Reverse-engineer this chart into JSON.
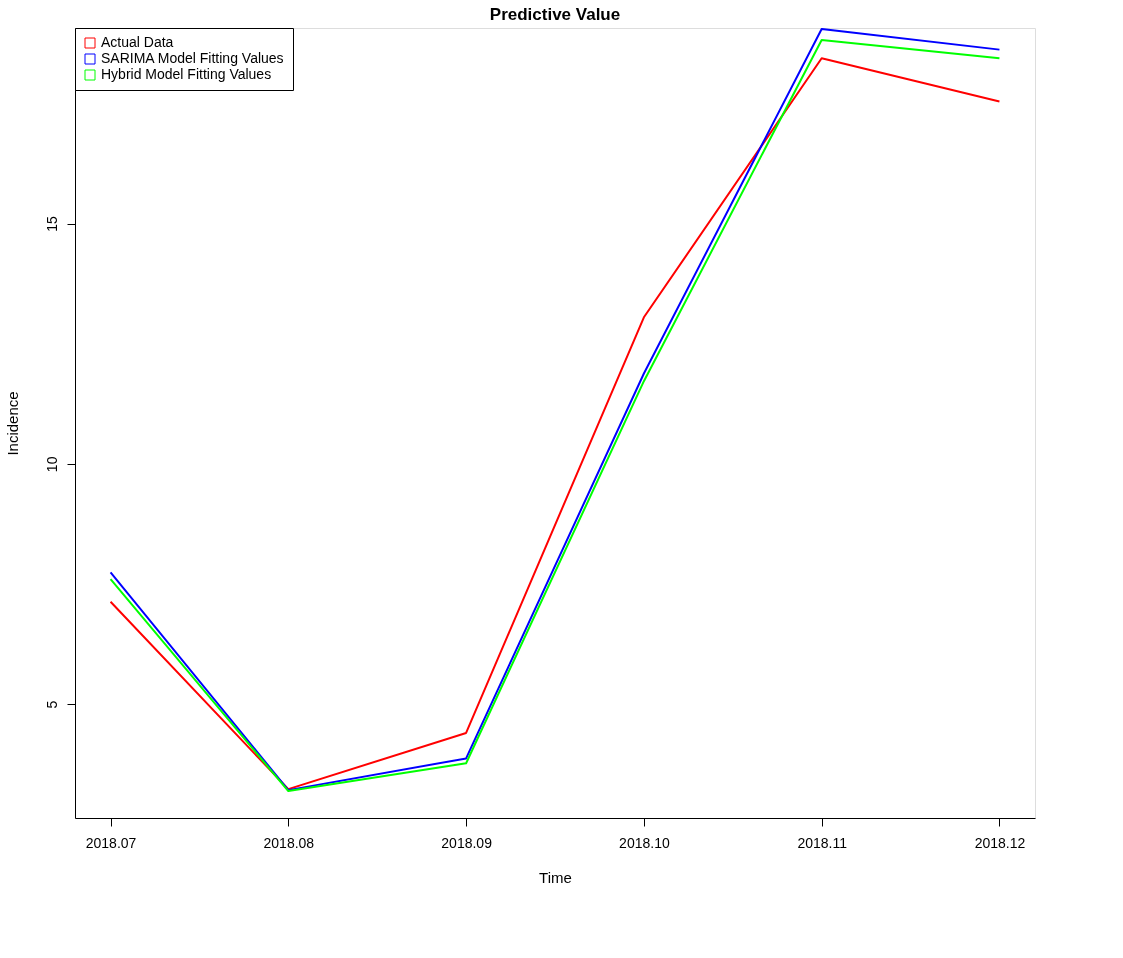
{
  "chart_data": {
    "type": "line",
    "title": "Predictive Value",
    "xlabel": "Time",
    "ylabel": "Incidence",
    "categories": [
      "2018.07",
      "2018.08",
      "2018.09",
      "2018.10",
      "2018.11",
      "2018.12"
    ],
    "series": [
      {
        "name": "Actual Data",
        "color": "#ff0000",
        "values": [
          7.13,
          3.23,
          4.4,
          13.05,
          18.44,
          17.54
        ]
      },
      {
        "name": "SARIMA Model Fitting Values",
        "color": "#0000ff",
        "values": [
          7.74,
          3.21,
          3.87,
          11.88,
          19.05,
          18.62
        ]
      },
      {
        "name": "Hybrid Model Fitting Values",
        "color": "#00ff00",
        "values": [
          7.6,
          3.19,
          3.77,
          11.72,
          18.82,
          18.44
        ]
      }
    ],
    "ylim": [
      2.63,
      19.07
    ],
    "yticks": [
      5,
      10,
      15
    ],
    "grid": false,
    "legend": "top left",
    "marker": "none",
    "line_style": "solid"
  }
}
